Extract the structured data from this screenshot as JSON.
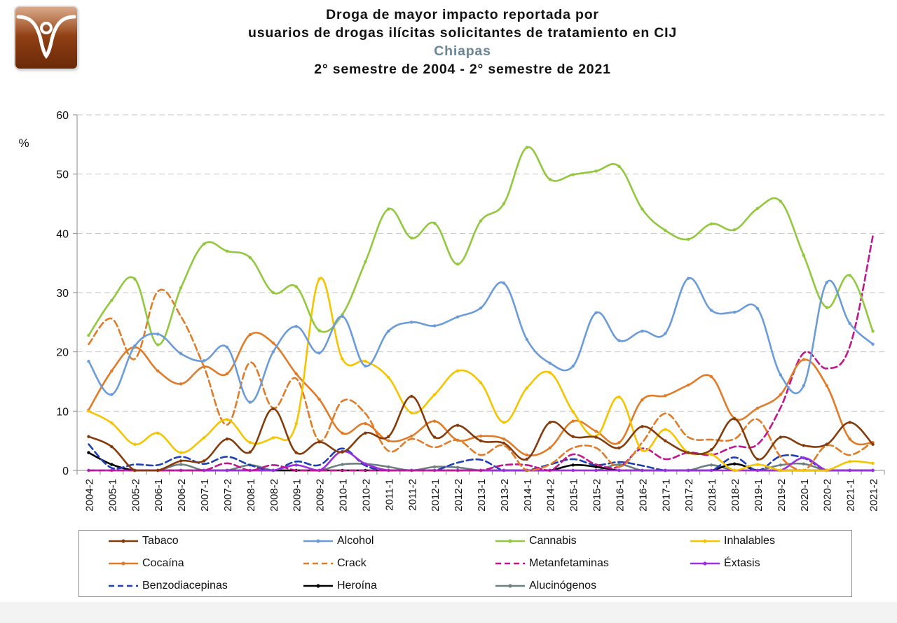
{
  "header": {
    "title_line1": "Droga de mayor impacto reportada por",
    "title_line2": "usuarios de drogas ilícitas solicitantes de tratamiento en CIJ",
    "region": "Chiapas",
    "period": "2° semestre de 2004 - 2° semestre de 2021",
    "logo": "cij-logo-icon"
  },
  "chart_data": {
    "type": "line",
    "title": "Droga de mayor impacto reportada por usuarios de drogas ilícitas solicitantes de tratamiento en CIJ",
    "subtitle": "Chiapas - 2° semestre de 2004 - 2° semestre de 2021",
    "ylabel": "%",
    "xlabel": "",
    "ylim": [
      0,
      60
    ],
    "yticks": [
      0,
      10,
      20,
      30,
      40,
      50,
      60
    ],
    "grid": "horizontal dashed",
    "legend_position": "bottom",
    "categories": [
      "2004-2",
      "2005-1",
      "2005-2",
      "2006-1",
      "2006-2",
      "2007-1",
      "2007-2",
      "2008-1",
      "2008-2",
      "2009-1",
      "2009-2",
      "2010-1",
      "2010-2",
      "2011-1",
      "2011-2",
      "2012-1",
      "2012-2",
      "2013-1",
      "2013-2",
      "2014-1",
      "2014-2",
      "2015-1",
      "2015-2",
      "2016-1",
      "2016-2",
      "2017-1",
      "2017-2",
      "2018-1",
      "2018-2",
      "2019-1",
      "2019-2",
      "2020-1",
      "2020-2",
      "2021-1",
      "2021-2"
    ],
    "series": [
      {
        "name": "Tabaco",
        "color": "#843c0c",
        "dash": "solid",
        "values": [
          5.7,
          4.0,
          0,
          0,
          1.6,
          1.6,
          5.3,
          3.1,
          10.4,
          3.0,
          4.8,
          3.1,
          6.3,
          5.7,
          12.5,
          5.6,
          7.6,
          5.0,
          4.6,
          1.9,
          8.1,
          5.7,
          5.6,
          3.8,
          7.4,
          5.0,
          3.0,
          3.5,
          8.7,
          1.9,
          5.6,
          4.2,
          4.4,
          8.1,
          4.4
        ]
      },
      {
        "name": "Alcohol",
        "color": "#6b9bd8",
        "dash": "solid",
        "values": [
          18.4,
          12.8,
          21.0,
          23.0,
          19.7,
          18.5,
          20.8,
          11.5,
          20.0,
          24.3,
          19.8,
          26.0,
          17.6,
          23.5,
          25.0,
          24.4,
          25.9,
          27.4,
          31.6,
          22.1,
          18.1,
          17.6,
          26.6,
          21.9,
          23.5,
          23.1,
          32.4,
          27.0,
          26.7,
          27.3,
          16.1,
          14.3,
          31.7,
          24.8,
          21.3
        ]
      },
      {
        "name": "Cannabis",
        "color": "#92c83e",
        "dash": "solid",
        "values": [
          22.8,
          28.7,
          32.3,
          21.2,
          30.8,
          38.2,
          37.0,
          35.9,
          30.0,
          31.0,
          23.6,
          26.3,
          35.2,
          44.1,
          39.2,
          41.7,
          34.8,
          42.1,
          45.0,
          54.5,
          49.1,
          49.9,
          50.5,
          51.3,
          44.1,
          40.5,
          39.0,
          41.6,
          40.6,
          44.2,
          45.4,
          36.3,
          27.5,
          32.9,
          23.5
        ]
      },
      {
        "name": "Inhalables",
        "color": "#f5c400",
        "dash": "solid",
        "values": [
          10.0,
          8.0,
          4.4,
          6.3,
          3.0,
          5.5,
          8.6,
          4.7,
          5.5,
          7.9,
          32.3,
          18.8,
          18.4,
          15.7,
          9.7,
          12.8,
          16.8,
          14.8,
          8.1,
          13.9,
          16.5,
          9.9,
          5.8,
          12.4,
          3.4,
          6.9,
          3.0,
          2.7,
          0,
          1.0,
          0,
          0,
          0,
          1.5,
          1.2
        ]
      },
      {
        "name": "Cocaína",
        "color": "#e07b28",
        "dash": "solid",
        "values": [
          10.2,
          16.8,
          20.8,
          16.8,
          14.6,
          17.5,
          16.3,
          22.9,
          21.5,
          16.3,
          12.0,
          6.3,
          7.9,
          5.0,
          5.8,
          8.3,
          5.1,
          5.8,
          5.3,
          2.6,
          3.8,
          8.3,
          6.6,
          4.7,
          11.9,
          12.6,
          14.4,
          15.8,
          8.8,
          10.5,
          12.8,
          18.7,
          14.3,
          5.3,
          4.7
        ]
      },
      {
        "name": "Crack",
        "color": "#e07b28",
        "dash": "dashed",
        "values": [
          21.3,
          25.6,
          18.8,
          30.2,
          26.0,
          17.5,
          7.7,
          18.2,
          10.5,
          15.5,
          5.0,
          11.7,
          9.6,
          3.3,
          5.3,
          3.9,
          5.1,
          2.6,
          4.2,
          0,
          1.0,
          3.8,
          3.8,
          0.6,
          4.7,
          9.6,
          5.6,
          5.2,
          5.3,
          8.6,
          2.3,
          0,
          4.2,
          2.6,
          4.8
        ]
      },
      {
        "name": "Metanfetaminas",
        "color": "#c0168e",
        "dash": "dashed",
        "values": [
          0,
          0,
          0,
          0,
          0,
          0,
          1.2,
          0,
          0.9,
          0,
          0,
          0,
          0,
          0,
          0,
          0,
          0,
          0,
          0.9,
          0.9,
          0,
          2.7,
          1.0,
          0.6,
          3.7,
          1.9,
          3.0,
          2.6,
          4.0,
          4.4,
          10.6,
          19.8,
          17.2,
          20.9,
          39.5
        ]
      },
      {
        "name": "Éxtasis",
        "color": "#9b30e0",
        "dash": "solid",
        "values": [
          0,
          0,
          0,
          0,
          0,
          0,
          0,
          0,
          0,
          0.9,
          0,
          3.2,
          1.1,
          0,
          0,
          0,
          0,
          0,
          0,
          0,
          0,
          0,
          0,
          0,
          0,
          0,
          0,
          0,
          0,
          0,
          0,
          2.1,
          0,
          0,
          0
        ]
      },
      {
        "name": "Benzodiacepinas",
        "color": "#1f3fb4",
        "dash": "dashed",
        "values": [
          4.4,
          0.4,
          1.0,
          0.9,
          2.3,
          1.1,
          2.3,
          0.9,
          0,
          1.5,
          0.9,
          3.7,
          0.8,
          0,
          0,
          0,
          1.3,
          1.8,
          0,
          0,
          1.0,
          1.9,
          0.9,
          1.4,
          0.8,
          0,
          0,
          0,
          2.2,
          0,
          2.4,
          2.1,
          0,
          0,
          0
        ]
      },
      {
        "name": "Heroína",
        "color": "#000000",
        "dash": "solid",
        "values": [
          3.0,
          1.0,
          0,
          0,
          0,
          0,
          0,
          0,
          0,
          0,
          0,
          0,
          0,
          0,
          0,
          0,
          0,
          0,
          0,
          0,
          0,
          0.9,
          0.6,
          0,
          0,
          0,
          0,
          0,
          1.1,
          0,
          0,
          0,
          0,
          0,
          0
        ]
      },
      {
        "name": "Alucinógenos",
        "color": "#6e7f80",
        "dash": "solid",
        "values": [
          0,
          0,
          0,
          0,
          1.0,
          0,
          0,
          0.9,
          0,
          0,
          0,
          1.0,
          1.1,
          0.6,
          0,
          0.6,
          0.5,
          0,
          0,
          0,
          0,
          0,
          0,
          1.0,
          0,
          0,
          0,
          0.9,
          0,
          0,
          0.9,
          1.1,
          0,
          0,
          0
        ]
      }
    ]
  }
}
